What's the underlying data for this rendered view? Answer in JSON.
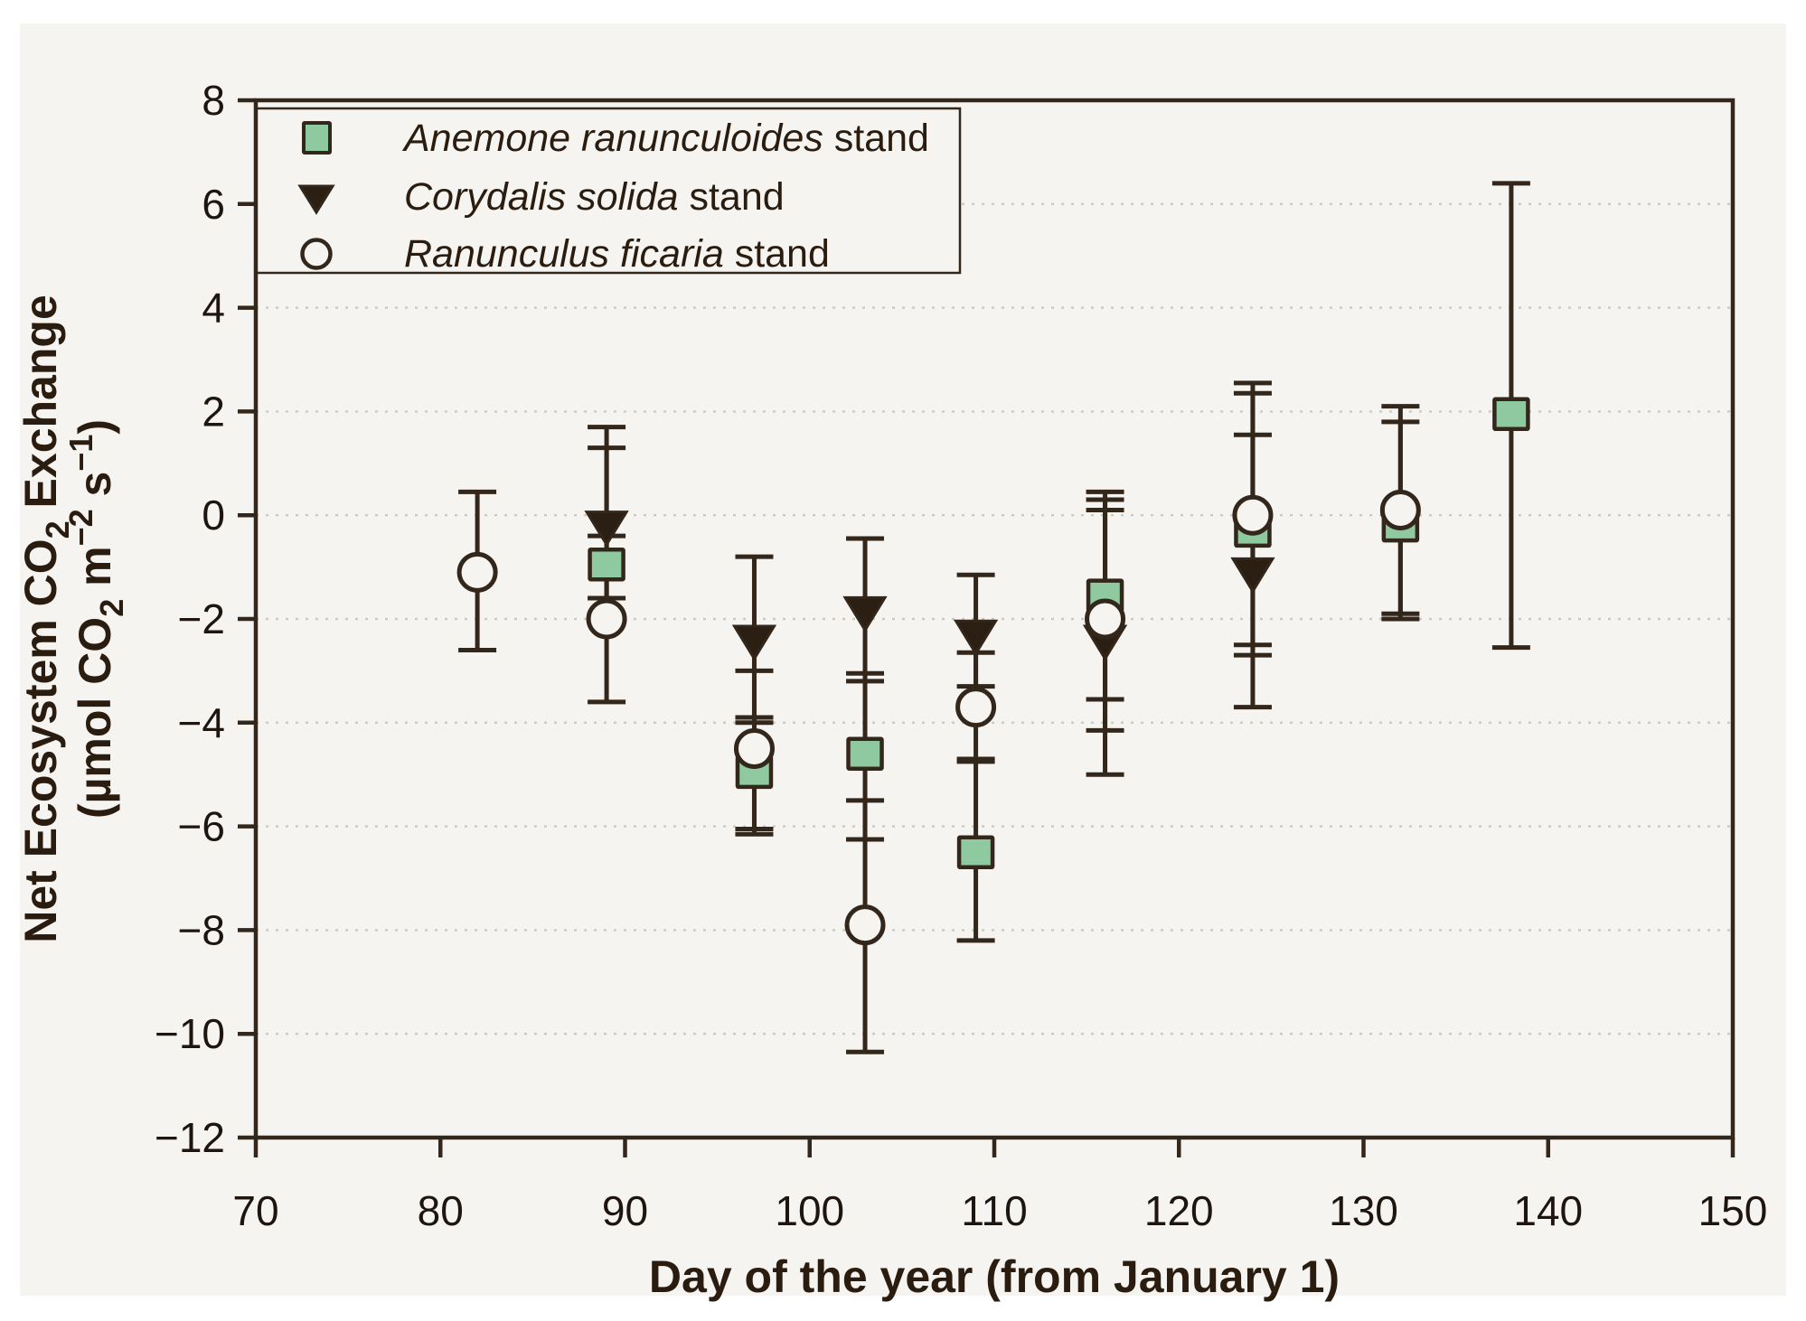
{
  "colors": {
    "panel_bg": "#f5f4f1",
    "page_bg": "#ffffff",
    "ink": "#33261a",
    "tick_text": "#1d150e",
    "title_text": "#2b1c10",
    "grid": "#ccc9c4",
    "square_fill": "#8fc9a0",
    "triangle_fill": "#2b1e12",
    "circle_fill": "#f5f4f1"
  },
  "legend": {
    "entries": [
      {
        "species": "Anemone ranunculoides",
        "suffix": " stand",
        "marker": "square"
      },
      {
        "species": "Corydalis solida",
        "suffix": " stand",
        "marker": "triangle-down"
      },
      {
        "species": "Ranunculus ficaria",
        "suffix": " stand",
        "marker": "open-circle"
      }
    ]
  },
  "chart_data": {
    "type": "scatter",
    "title": "",
    "xlabel": "Day of the year (from January 1)",
    "ylabel_parts_line1": [
      {
        "t": "Net Ecosystem CO"
      },
      {
        "t": "2",
        "style": "sub"
      },
      {
        "t": " Exchange"
      }
    ],
    "ylabel_parts_line2": [
      {
        "t": "(µmol CO"
      },
      {
        "t": "2",
        "style": "sub"
      },
      {
        "t": " m"
      },
      {
        "t": "−2",
        "style": "sup"
      },
      {
        "t": " s"
      },
      {
        "t": "−1",
        "style": "sup"
      },
      {
        "t": ")"
      }
    ],
    "xlim": [
      70,
      150
    ],
    "ylim": [
      -12,
      8
    ],
    "x_ticks": [
      70,
      80,
      90,
      100,
      110,
      120,
      130,
      140,
      150
    ],
    "y_ticks": [
      8,
      6,
      4,
      2,
      0,
      -2,
      -4,
      -6,
      -8,
      -10,
      -12
    ],
    "grid": "horizontal dotted lines every 2 units",
    "legend_position": "top-left inside plot",
    "series": [
      {
        "name": "Corydalis solida stand",
        "marker": "filled-triangle-down",
        "points": [
          {
            "x": 89,
            "y": -0.2,
            "hi": 1.7,
            "lo": -2.05
          },
          {
            "x": 97,
            "y": -2.4,
            "hi": -0.8,
            "lo": -4.0
          },
          {
            "x": 103,
            "y": -1.85,
            "hi": -0.45,
            "lo": -3.2
          },
          {
            "x": 109,
            "y": -2.3,
            "hi": -1.15,
            "lo": -3.3
          },
          {
            "x": 116,
            "y": -2.4,
            "hi": 0.1,
            "lo": -5.0
          },
          {
            "x": 124,
            "y": -1.1,
            "hi": 1.55,
            "lo": -3.7
          }
        ]
      },
      {
        "name": "Anemone ranunculoides stand",
        "marker": "filled-square",
        "points": [
          {
            "x": 89,
            "y": -0.95,
            "hi": 1.3,
            "lo": -1.6
          },
          {
            "x": 97,
            "y": -4.95,
            "hi": -3.9,
            "lo": -6.15
          },
          {
            "x": 103,
            "y": -4.6,
            "hi": -3.05,
            "lo": -6.25
          },
          {
            "x": 109,
            "y": -6.5,
            "hi": -4.75,
            "lo": -8.2
          },
          {
            "x": 116,
            "y": -1.55,
            "hi": 0.45,
            "lo": -3.55
          },
          {
            "x": 124,
            "y": -0.3,
            "hi": 2.55,
            "lo": -2.5
          },
          {
            "x": 132,
            "y": -0.2,
            "hi": 1.8,
            "lo": -2.0
          },
          {
            "x": 138,
            "y": 1.95,
            "hi": 6.4,
            "lo": -2.55
          }
        ]
      },
      {
        "name": "Ranunculus ficaria stand",
        "marker": "open-circle",
        "points": [
          {
            "x": 82,
            "y": -1.1,
            "hi": 0.45,
            "lo": -2.6
          },
          {
            "x": 89,
            "y": -2.0,
            "hi": -0.4,
            "lo": -3.6
          },
          {
            "x": 97,
            "y": -4.5,
            "hi": -3.0,
            "lo": -6.05
          },
          {
            "x": 103,
            "y": -7.9,
            "hi": -5.5,
            "lo": -10.35
          },
          {
            "x": 109,
            "y": -3.7,
            "hi": -2.65,
            "lo": -4.7
          },
          {
            "x": 116,
            "y": -2.0,
            "hi": 0.3,
            "lo": -4.15
          },
          {
            "x": 124,
            "y": 0.0,
            "hi": 2.35,
            "lo": -2.7
          },
          {
            "x": 132,
            "y": 0.1,
            "hi": 2.1,
            "lo": -1.9
          }
        ]
      }
    ]
  }
}
